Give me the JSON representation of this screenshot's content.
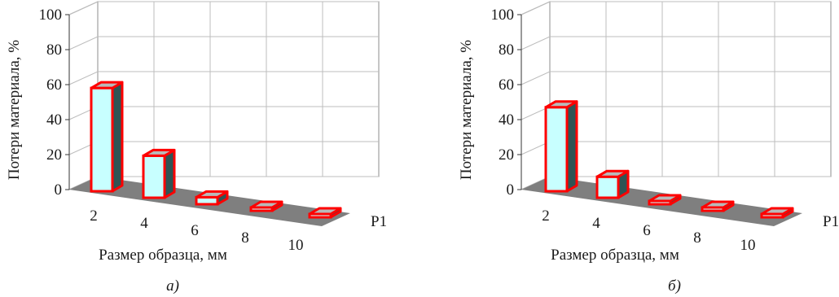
{
  "chart_data": [
    {
      "type": "bar",
      "style": "3d-column",
      "categories": [
        "2",
        "4",
        "6",
        "8",
        "10"
      ],
      "series": [
        {
          "name": "P1",
          "values": [
            59,
            24,
            4,
            1,
            0
          ]
        }
      ],
      "xlabel": "Размер образца, мм",
      "ylabel": "Потери материала, %",
      "ylim": [
        0,
        100
      ],
      "yticks": [
        "0",
        "20",
        "40",
        "60",
        "80",
        "100"
      ],
      "caption": "а)",
      "grid": true,
      "colors": {
        "bar_face": "#c8ffff",
        "bar_side": "#2f5454",
        "bar_top": "#b9b9b9",
        "bar_outline": "#ff0000",
        "floor": "#7f7f7f"
      }
    },
    {
      "type": "bar",
      "style": "3d-column",
      "categories": [
        "2",
        "4",
        "6",
        "8",
        "10"
      ],
      "series": [
        {
          "name": "P1",
          "values": [
            48,
            12,
            1,
            0,
            0
          ]
        }
      ],
      "xlabel": "Размер образца, мм",
      "ylabel": "Потери материала, %",
      "ylim": [
        0,
        100
      ],
      "yticks": [
        "0",
        "20",
        "40",
        "60",
        "80",
        "100"
      ],
      "caption": "б)",
      "grid": true,
      "colors": {
        "bar_face": "#c8ffff",
        "bar_side": "#2f5454",
        "bar_top": "#b9b9b9",
        "bar_outline": "#ff0000",
        "floor": "#7f7f7f"
      }
    }
  ]
}
